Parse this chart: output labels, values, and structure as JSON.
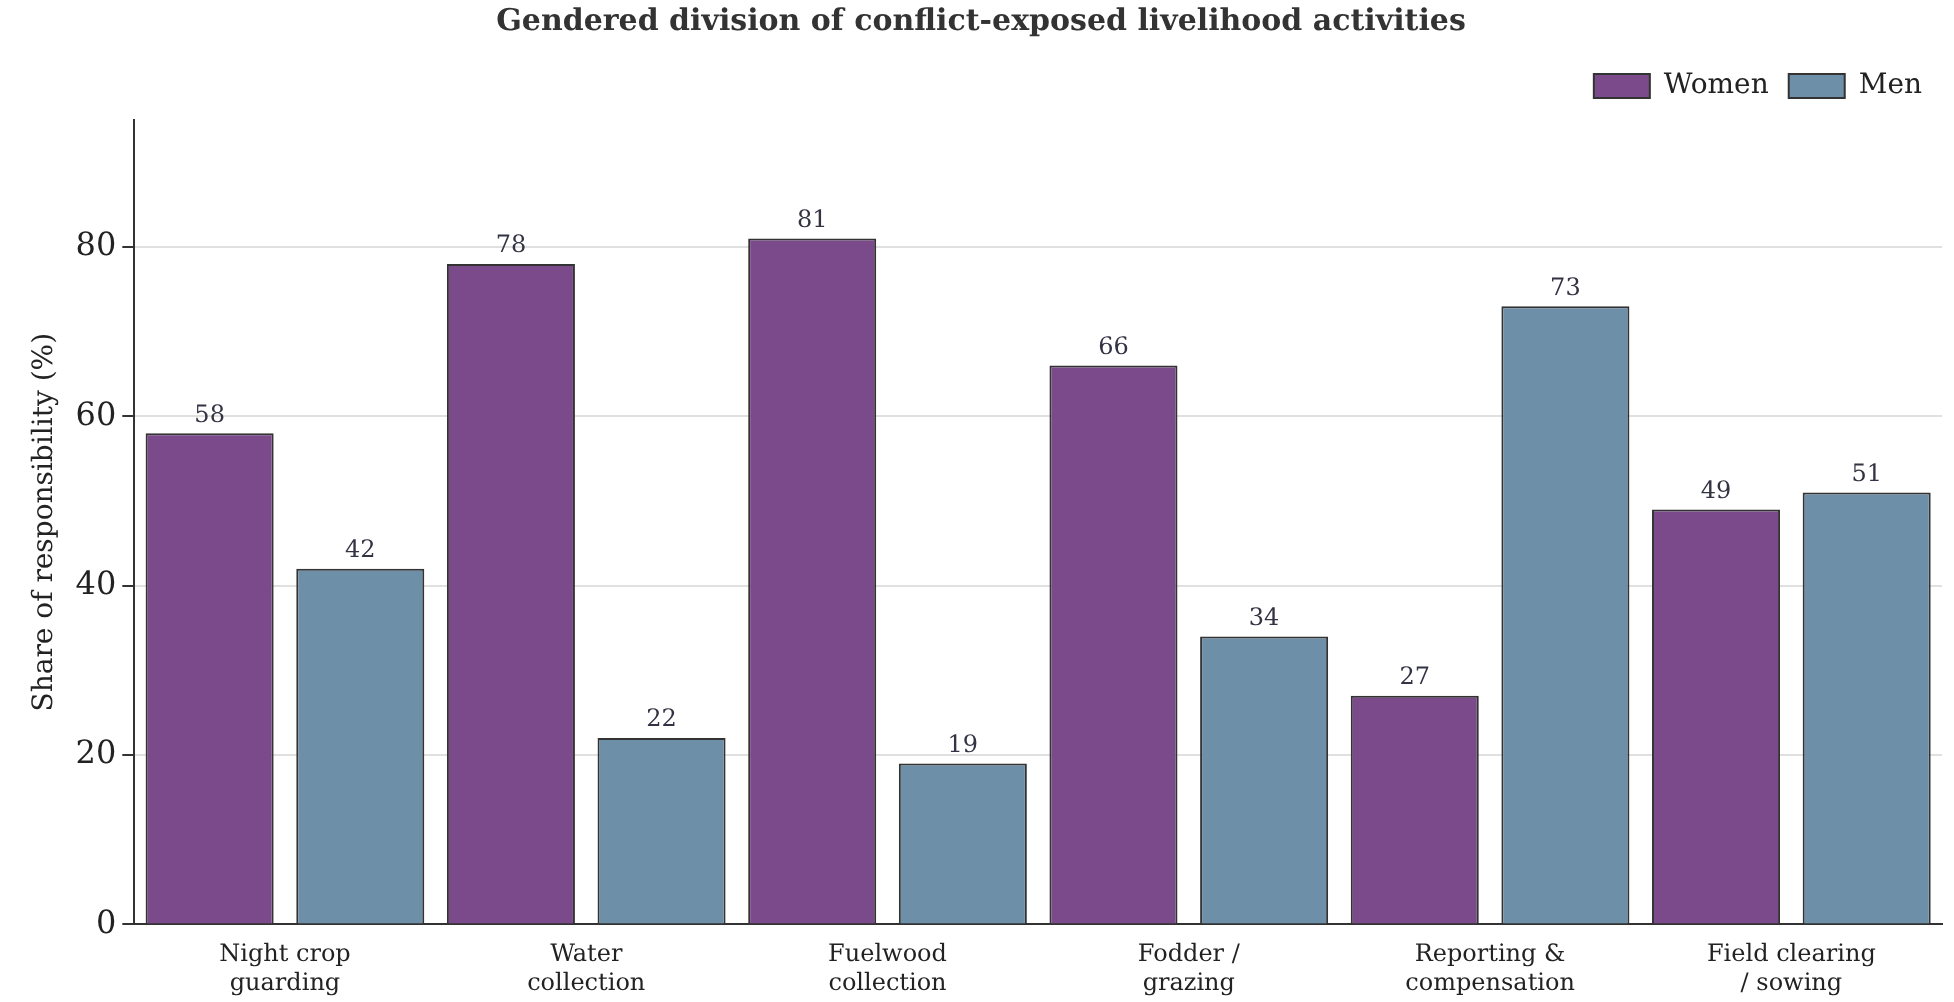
{
  "chart_data": {
    "type": "bar",
    "title": "Gendered division of conflict-exposed livelihood activities",
    "ylabel": "Share of responsibility (%)",
    "categories": [
      "Night crop guarding",
      "Water collection",
      "Fuelwood collection",
      "Fodder / grazing",
      "Reporting & compensation",
      "Field clearing / sowing"
    ],
    "series": [
      {
        "name": "Women",
        "color": "#7b4a8b",
        "values": [
          58,
          78,
          81,
          66,
          27,
          49
        ]
      },
      {
        "name": "Men",
        "color": "#6e8fa8",
        "values": [
          42,
          22,
          19,
          34,
          73,
          51
        ]
      }
    ],
    "ylim": [
      0,
      95
    ],
    "yticks": [
      0,
      20,
      40,
      60,
      80
    ],
    "grid": "y",
    "legend": "top right",
    "data_labels": true
  }
}
